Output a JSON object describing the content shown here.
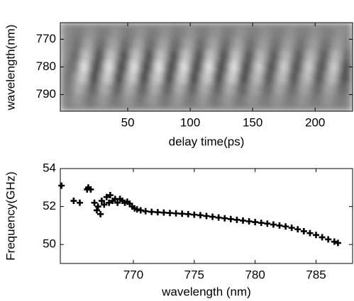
{
  "chart_data": [
    {
      "type": "heatmap",
      "colormap": "gray",
      "clim": [
        -1,
        1
      ],
      "xlabel": "delay time(ps)",
      "ylabel": "wavelength(nm)",
      "xlim": [
        -4,
        230
      ],
      "ylim": [
        796,
        764
      ],
      "xticks": [
        50,
        100,
        150,
        200
      ],
      "yticks": [
        770,
        780,
        790
      ],
      "x": [
        0,
        5,
        10,
        15,
        20,
        25,
        30,
        35,
        40,
        45,
        50,
        55,
        60,
        65,
        70,
        75,
        80,
        85,
        90,
        95,
        100,
        105,
        110,
        115,
        120,
        125,
        130,
        135,
        140,
        145,
        150,
        155,
        160,
        165,
        170,
        175,
        180,
        185,
        190,
        195,
        200,
        205,
        210,
        215,
        220,
        225
      ],
      "y": [
        768,
        772,
        776,
        780,
        784,
        788,
        792
      ],
      "z": [
        [
          0.05,
          0,
          -0.15,
          0,
          0.15,
          0,
          -0.15,
          0,
          0.15,
          0,
          -0.15,
          0,
          0.15,
          0,
          -0.15,
          0,
          0.15,
          0,
          -0.15,
          0,
          0.15,
          0,
          -0.15,
          0,
          0.15,
          0,
          -0.15,
          0,
          0.15,
          0,
          -0.12,
          0,
          0.12,
          0,
          -0.12,
          0,
          0.12,
          0,
          -0.12,
          0,
          0.12,
          0,
          -0.12,
          0,
          0.12,
          0
        ],
        [
          0.09,
          -0.05,
          -0.3,
          0.18,
          0.3,
          -0.18,
          -0.3,
          0.18,
          0.3,
          -0.18,
          -0.3,
          0.18,
          0.3,
          -0.18,
          -0.3,
          0.18,
          0.3,
          -0.18,
          -0.3,
          0.18,
          0.3,
          -0.18,
          -0.3,
          0.18,
          0.3,
          -0.18,
          -0.3,
          0.18,
          0.3,
          -0.18,
          -0.24,
          0.14,
          0.24,
          -0.14,
          -0.24,
          0.14,
          0.24,
          -0.14,
          -0.24,
          0.14,
          0.24,
          -0.14,
          -0.24,
          0.14,
          0.24,
          -0.14
        ],
        [
          0.11,
          -0.18,
          -0.35,
          0.61,
          0.35,
          -0.61,
          -0.35,
          0.61,
          0.35,
          -0.61,
          -0.35,
          0.61,
          0.35,
          -0.61,
          -0.35,
          0.61,
          0.35,
          -0.61,
          -0.35,
          0.61,
          0.35,
          -0.61,
          -0.35,
          0.61,
          0.35,
          -0.61,
          -0.35,
          0.61,
          0.35,
          -0.61,
          -0.28,
          0.49,
          0.28,
          -0.49,
          -0.28,
          0.49,
          0.28,
          -0.49,
          -0.28,
          0.49,
          0.28,
          -0.49,
          -0.28,
          0.49,
          0.28,
          -0.49
        ],
        [
          0,
          -0.3,
          0,
          1,
          0,
          -1,
          0,
          1,
          0,
          -1,
          0,
          1,
          0,
          -1,
          0,
          1,
          0,
          -1,
          0,
          1,
          0,
          -1,
          0,
          1,
          0,
          -1,
          0,
          1,
          0,
          -1,
          0,
          0.8,
          0,
          -0.8,
          0,
          0.8,
          0,
          -0.8,
          0,
          0.8,
          0,
          -0.8,
          0,
          0.8,
          0,
          -0.8
        ],
        [
          -0.12,
          -0.21,
          0.4,
          0.7,
          -0.4,
          -0.7,
          0.4,
          0.7,
          -0.4,
          -0.7,
          0.4,
          0.7,
          -0.4,
          -0.7,
          0.4,
          0.7,
          -0.4,
          -0.7,
          0.4,
          0.7,
          -0.4,
          -0.7,
          0.4,
          0.7,
          -0.4,
          -0.7,
          0.4,
          0.7,
          -0.4,
          -0.7,
          0.32,
          0.56,
          -0.32,
          -0.56,
          0.32,
          0.56,
          -0.32,
          -0.56,
          0.32,
          0.56,
          -0.32,
          -0.56,
          0.32,
          0.56,
          -0.32,
          -0.56
        ],
        [
          -0.12,
          -0.07,
          0.39,
          0.23,
          -0.39,
          -0.23,
          0.39,
          0.23,
          -0.39,
          -0.23,
          0.39,
          0.23,
          -0.39,
          -0.23,
          0.39,
          0.23,
          -0.39,
          -0.23,
          0.39,
          0.23,
          -0.39,
          -0.23,
          0.39,
          0.23,
          -0.39,
          -0.23,
          0.39,
          0.23,
          -0.39,
          -0.23,
          0.31,
          0.18,
          -0.31,
          -0.18,
          0.31,
          0.18,
          -0.31,
          -0.18,
          0.31,
          0.18,
          -0.31,
          -0.18,
          0.31,
          0.18,
          -0.31,
          -0.18
        ],
        [
          -0.06,
          0,
          0.2,
          0,
          -0.2,
          0,
          0.2,
          0,
          -0.2,
          0,
          0.2,
          0,
          -0.2,
          0,
          0.2,
          0,
          -0.2,
          0,
          0.2,
          0,
          -0.2,
          0,
          0.2,
          0,
          -0.2,
          0,
          0.2,
          0,
          -0.2,
          0,
          0.16,
          0,
          -0.16,
          0,
          0.16,
          0,
          -0.16,
          0,
          0.16,
          0,
          -0.16,
          0,
          0.16,
          0,
          -0.16,
          0
        ]
      ]
    },
    {
      "type": "scatter",
      "marker": "+",
      "color": "#000000",
      "xlabel": "wavelength (nm)",
      "ylabel": "Frequency(GHz)",
      "xlim": [
        764,
        788
      ],
      "ylim": [
        49,
        54
      ],
      "xticks": [
        770,
        775,
        780,
        785
      ],
      "yticks": [
        50,
        52,
        54
      ],
      "x": [
        764.1,
        765.1,
        765.6,
        766.2,
        766.3,
        766.5,
        766.8,
        767.0,
        767.1,
        767.3,
        767.4,
        767.6,
        767.8,
        768.0,
        768.1,
        768.3,
        768.5,
        768.7,
        768.9,
        769.1,
        769.3,
        769.5,
        769.7,
        769.9,
        770.1,
        770.3,
        770.6,
        771.0,
        771.5,
        772.0,
        772.5,
        773.0,
        773.5,
        774.0,
        774.5,
        775.0,
        775.5,
        776.0,
        776.5,
        777.0,
        777.5,
        778.0,
        778.5,
        779.0,
        779.5,
        780.0,
        780.5,
        781.0,
        781.5,
        782.0,
        782.5,
        783.0,
        783.5,
        784.0,
        784.5,
        785.0,
        785.5,
        786.0,
        786.5,
        786.8
      ],
      "y": [
        53.1,
        52.3,
        52.2,
        52.9,
        53.0,
        52.9,
        52.2,
        51.8,
        52.0,
        51.6,
        52.3,
        52.1,
        52.5,
        52.2,
        52.6,
        52.3,
        52.4,
        52.2,
        52.4,
        52.3,
        52.2,
        52.25,
        52.15,
        52.0,
        51.9,
        51.85,
        51.8,
        51.75,
        51.72,
        51.7,
        51.68,
        51.66,
        51.64,
        51.62,
        51.6,
        51.57,
        51.54,
        51.5,
        51.46,
        51.42,
        51.38,
        51.34,
        51.3,
        51.26,
        51.22,
        51.18,
        51.14,
        51.1,
        51.05,
        51.0,
        50.95,
        50.88,
        50.8,
        50.7,
        50.6,
        50.5,
        50.38,
        50.27,
        50.15,
        50.08
      ]
    }
  ]
}
